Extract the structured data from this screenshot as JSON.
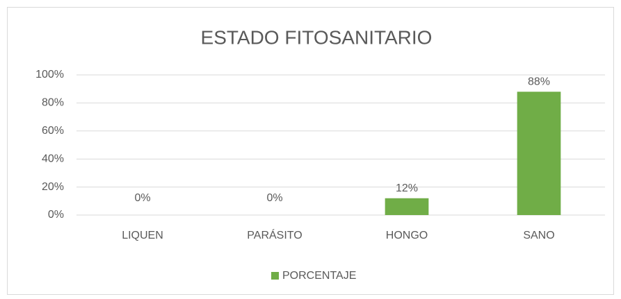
{
  "chart_data": {
    "type": "bar",
    "title": "ESTADO FITOSANITARIO",
    "categories": [
      "LIQUEN",
      "PARÁSITO",
      "HONGO",
      "SANO"
    ],
    "values": [
      0,
      0,
      12,
      88
    ],
    "value_labels": [
      "0%",
      "0%",
      "12%",
      "88%"
    ],
    "color": "#70ad47",
    "series_name": "PORCENTAJE",
    "ylim": [
      0,
      100
    ],
    "yticks": [
      {
        "value": 0,
        "label": "0%"
      },
      {
        "value": 20,
        "label": "20%"
      },
      {
        "value": 40,
        "label": "40%"
      },
      {
        "value": 60,
        "label": "60%"
      },
      {
        "value": 80,
        "label": "80%"
      },
      {
        "value": 100,
        "label": "100%"
      }
    ],
    "grid": true,
    "legend": "bottom"
  }
}
